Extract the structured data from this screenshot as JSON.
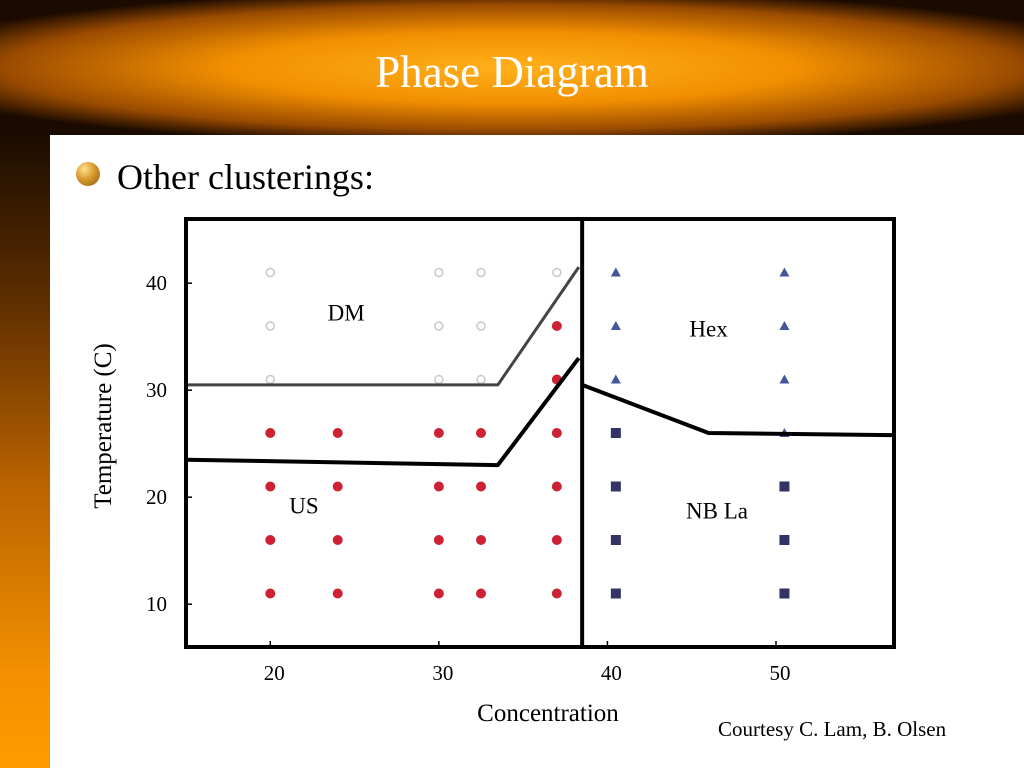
{
  "slide": {
    "title": "Phase Diagram",
    "bullet": "Other clusterings:",
    "credit": "Courtesy C. Lam, B. Olsen"
  },
  "colors": {
    "title_bar_orange": "#f5a000",
    "us_marker": "#cc2233",
    "nb_marker": "#333366",
    "dm_marker": "#c8c8c8",
    "hex_marker": "#445599",
    "outline": "#000000"
  },
  "chart_data": {
    "type": "scatter",
    "xlabel": "Concentration",
    "ylabel": "Temperature (C)",
    "xlim": [
      15,
      57
    ],
    "ylim": [
      6,
      46
    ],
    "xticks": [
      20,
      30,
      40,
      50
    ],
    "yticks": [
      10,
      20,
      30,
      40
    ],
    "region_labels": [
      {
        "text": "DM",
        "x": 24.5,
        "y": 36.5
      },
      {
        "text": "Hex",
        "x": 46.0,
        "y": 35.0
      },
      {
        "text": "US",
        "x": 22.0,
        "y": 18.5
      },
      {
        "text": "NB La",
        "x": 46.5,
        "y": 18.0
      }
    ],
    "series": [
      {
        "marker": "open-circle",
        "color": "#c8c8c8",
        "points": [
          [
            20,
            41
          ],
          [
            30,
            41
          ],
          [
            32.5,
            41
          ],
          [
            37,
            41
          ],
          [
            20,
            36
          ],
          [
            30,
            36
          ],
          [
            32.5,
            36
          ],
          [
            20,
            31
          ],
          [
            30,
            31
          ],
          [
            32.5,
            31
          ]
        ]
      },
      {
        "marker": "filled-circle",
        "color": "#cc2233",
        "points": [
          [
            37,
            36
          ],
          [
            37,
            31
          ],
          [
            20,
            26
          ],
          [
            24,
            26
          ],
          [
            30,
            26
          ],
          [
            32.5,
            26
          ],
          [
            37,
            26
          ],
          [
            20,
            21
          ],
          [
            24,
            21
          ],
          [
            30,
            21
          ],
          [
            32.5,
            21
          ],
          [
            37,
            21
          ],
          [
            20,
            16
          ],
          [
            24,
            16
          ],
          [
            30,
            16
          ],
          [
            32.5,
            16
          ],
          [
            37,
            16
          ],
          [
            20,
            11
          ],
          [
            24,
            11
          ],
          [
            30,
            11
          ],
          [
            32.5,
            11
          ],
          [
            37,
            11
          ]
        ]
      },
      {
        "marker": "triangle",
        "color": "#445599",
        "points": [
          [
            40.5,
            41
          ],
          [
            50.5,
            41
          ],
          [
            40.5,
            36
          ],
          [
            50.5,
            36
          ],
          [
            40.5,
            31
          ],
          [
            50.5,
            31
          ],
          [
            50.5,
            26
          ]
        ]
      },
      {
        "marker": "square",
        "color": "#333366",
        "points": [
          [
            40.5,
            26
          ],
          [
            40.5,
            21
          ],
          [
            50.5,
            21
          ],
          [
            40.5,
            16
          ],
          [
            50.5,
            16
          ],
          [
            40.5,
            11
          ],
          [
            50.5,
            11
          ]
        ]
      }
    ],
    "boundaries": [
      {
        "style": "thin",
        "points": [
          [
            15,
            30.5
          ],
          [
            33.5,
            30.5
          ],
          [
            38.3,
            41.5
          ]
        ]
      },
      {
        "style": "thick",
        "points": [
          [
            15,
            23.5
          ],
          [
            33.5,
            23
          ],
          [
            38.3,
            33
          ]
        ]
      },
      {
        "style": "thick",
        "points": [
          [
            38.5,
            46
          ],
          [
            38.5,
            6
          ]
        ]
      },
      {
        "style": "thick",
        "points": [
          [
            38.5,
            30.5
          ],
          [
            46,
            26
          ],
          [
            57,
            25.8
          ]
        ]
      }
    ]
  }
}
